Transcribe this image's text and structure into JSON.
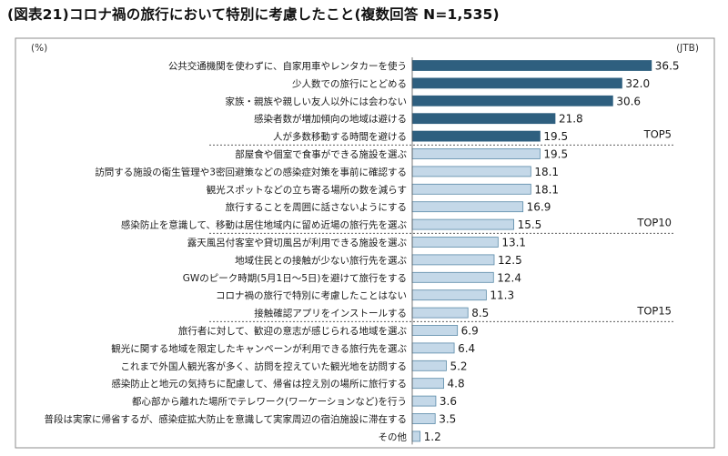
{
  "chart_data": {
    "type": "bar",
    "orientation": "horizontal",
    "title": "(図表21)コロナ禍の旅行において特別に考慮したこと(複数回答 N=1,535)",
    "unit_label": "(%)",
    "source_label": "(JTB)",
    "colors": {
      "top5": "#2e5f7f",
      "rest": "#c4d8e8",
      "border": "#5a8aa8"
    },
    "categories": [
      "公共交通機関を使わずに、自家用車やレンタカーを使う",
      "少人数での旅行にとどめる",
      "家族・親族や親しい友人以外には会わない",
      "感染者数が増加傾向の地域は避ける",
      "人が多数移動する時間を避ける",
      "部屋食や個室で食事ができる施設を選ぶ",
      "訪問する施設の衛生管理や3密回避策などの感染症対策を事前に確認する",
      "観光スポットなどの立ち寄る場所の数を減らす",
      "旅行することを周囲に話さないようにする",
      "感染防止を意識して、移動は居住地域内に留め近場の旅行先を選ぶ",
      "露天風呂付客室や貸切風呂が利用できる施設を選ぶ",
      "地域住民との接触が少ない旅行先を選ぶ",
      "GWのピーク時期(5月1日～5日)を避けて旅行をする",
      "コロナ禍の旅行で特別に考慮したことはない",
      "接触確認アプリをインストールする",
      "旅行者に対して、歓迎の意志が感じられる地域を選ぶ",
      "観光に関する地域を限定したキャンペーンが利用できる旅行先を選ぶ",
      "これまで外国人観光客が多く、訪問を控えていた観光地を訪問する",
      "感染防止と地元の気持ちに配慮して、帰省は控え別の場所に旅行する",
      "都心部から離れた場所でテレワーク(ワーケーションなど)を行う",
      "普段は実家に帰省するが、感染症拡大防止を意識して実家周辺の宿泊施設に滞在する",
      "その他"
    ],
    "values": [
      36.5,
      32.0,
      30.6,
      21.8,
      19.5,
      19.5,
      18.1,
      18.1,
      16.9,
      15.5,
      13.1,
      12.5,
      12.4,
      11.3,
      8.5,
      6.9,
      6.4,
      5.2,
      4.8,
      3.6,
      3.5,
      1.2
    ],
    "value_labels": [
      "36.5",
      "32.0",
      "30.6",
      "21.8",
      "19.5",
      "19.5",
      "18.1",
      "18.1",
      "16.9",
      "15.5",
      "13.1",
      "12.5",
      "12.4",
      "11.3",
      "8.5",
      "6.9",
      "6.4",
      "5.2",
      "4.8",
      "3.6",
      "3.5",
      "1.2"
    ],
    "groups": [
      {
        "label": "TOP5",
        "after_index": 4
      },
      {
        "label": "TOP10",
        "after_index": 9
      },
      {
        "label": "TOP15",
        "after_index": 14
      }
    ],
    "highlight_count": 5,
    "xlim": [
      0,
      40
    ]
  }
}
